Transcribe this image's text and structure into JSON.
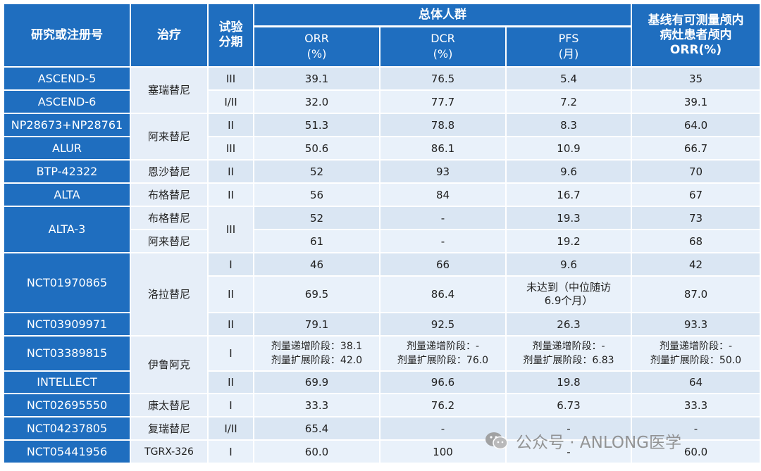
{
  "header": {
    "study": "研究或注册号",
    "treatment": "治疗",
    "phase": "试验\n分期",
    "overall": "总体人群",
    "brain": "基线有可测量颅内\n病灶患者颅内\nORR(%)",
    "orr": "ORR\n(%)",
    "dcr": "DCR\n(%)",
    "pfs": "PFS\n(月)"
  },
  "rows": [
    {
      "study": "ASCEND-5",
      "treatment": "塞瑞替尼",
      "phase": "III",
      "orr": "39.1",
      "dcr": "76.5",
      "pfs": "5.4",
      "brain": "35"
    },
    {
      "study": "ASCEND-6",
      "treatment": "",
      "phase": "I/II",
      "orr": "32.0",
      "dcr": "77.7",
      "pfs": "7.2",
      "brain": "39.1"
    },
    {
      "study": "NP28673+NP28761",
      "treatment": "阿来替尼",
      "phase": "II",
      "orr": "51.3",
      "dcr": "78.8",
      "pfs": "8.3",
      "brain": "64.0"
    },
    {
      "study": "ALUR",
      "treatment": "",
      "phase": "III",
      "orr": "50.6",
      "dcr": "86.1",
      "pfs": "10.9",
      "brain": "66.7"
    },
    {
      "study": "BTP-42322",
      "treatment": "恩沙替尼",
      "phase": "II",
      "orr": "52",
      "dcr": "93",
      "pfs": "9.6",
      "brain": "70"
    },
    {
      "study": "ALTA",
      "treatment": "布格替尼",
      "phase": "II",
      "orr": "56",
      "dcr": "84",
      "pfs": "16.7",
      "brain": "67"
    },
    {
      "study": "ALTA-3",
      "treatment": "布格替尼",
      "phase": "III",
      "orr": "52",
      "dcr": "-",
      "pfs": "19.3",
      "brain": "73"
    },
    {
      "study": "",
      "treatment": "阿来替尼",
      "phase": "",
      "orr": "61",
      "dcr": "-",
      "pfs": "19.2",
      "brain": "68"
    },
    {
      "study": "NCT01970865",
      "treatment": "洛拉替尼",
      "phase": "I",
      "orr": "46",
      "dcr": "66",
      "pfs": "9.6",
      "brain": "42"
    },
    {
      "study": "",
      "treatment": "",
      "phase": "II",
      "orr": "69.5",
      "dcr": "86.4",
      "pfs": "未达到（中位随访\n6.9个月）",
      "brain": "87.0"
    },
    {
      "study": "NCT03909971",
      "treatment": "",
      "phase": "II",
      "orr": "79.1",
      "dcr": "92.5",
      "pfs": "26.3",
      "brain": "93.3"
    },
    {
      "study": "NCT03389815",
      "treatment": "伊鲁阿克",
      "phase": "I",
      "orr": "剂量递增阶段：38.1\n剂量扩展阶段：42.0",
      "dcr": "剂量递增阶段：-\n剂量扩展阶段：76.0",
      "pfs": "剂量递增阶段：-\n剂量扩展阶段：6.83",
      "brain": "剂量递增阶段：-\n剂量扩展阶段：50.0"
    },
    {
      "study": "INTELLECT",
      "treatment": "",
      "phase": "II",
      "orr": "69.9",
      "dcr": "96.6",
      "pfs": "19.8",
      "brain": "64"
    },
    {
      "study": "NCT02695550",
      "treatment": "康太替尼",
      "phase": "I",
      "orr": "33.3",
      "dcr": "76.2",
      "pfs": "6.73",
      "brain": "33.3"
    },
    {
      "study": "NCT04237805",
      "treatment": "复瑞替尼",
      "phase": "I/II",
      "orr": "65.4",
      "dcr": "-",
      "pfs": "-",
      "brain": "-"
    },
    {
      "study": "NCT05441956",
      "treatment": "TGRX-326",
      "phase": "I",
      "orr": "60.0",
      "dcr": "100",
      "pfs": "-",
      "brain": "60.0"
    }
  ],
  "watermark": {
    "text": "公众号 · ANLONG医学",
    "icon": "wechat-icon",
    "color": "#8a8a8a"
  },
  "colors": {
    "header": "#1f6ebf",
    "row_light": "#dae6f3",
    "row_lighter": "#e9f1fa"
  }
}
